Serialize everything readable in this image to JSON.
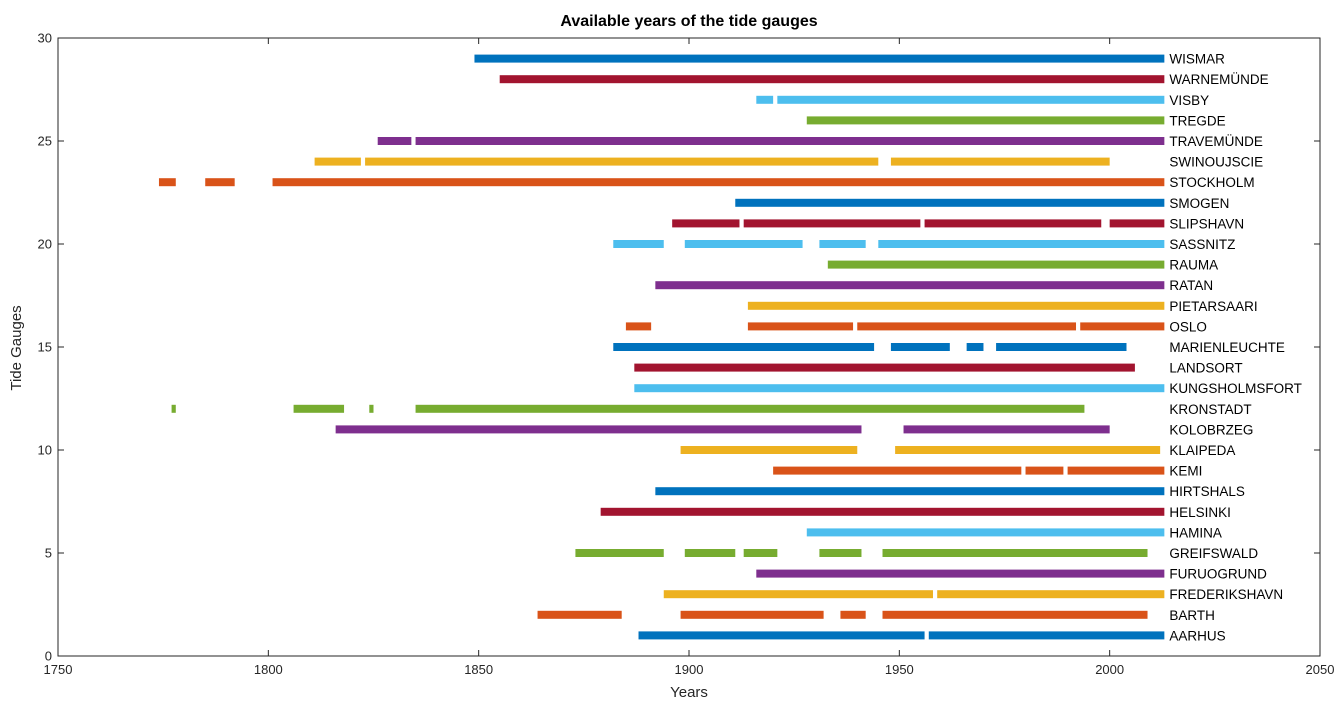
{
  "chart_data": {
    "type": "timeline",
    "title": "Available years of the tide gauges",
    "xlabel": "Years",
    "ylabel": "Tide Gauges",
    "xlim": [
      1750,
      2050
    ],
    "ylim": [
      0,
      30
    ],
    "xticks": [
      "1750",
      "1800",
      "1850",
      "1900",
      "1950",
      "2000",
      "2050"
    ],
    "yticks": [
      "0",
      "5",
      "10",
      "15",
      "20",
      "25",
      "30"
    ],
    "grid": false,
    "colors": [
      "#0072BD",
      "#D95319",
      "#EDB120",
      "#7E2F8E",
      "#77AC30",
      "#4DBEEE",
      "#A2142F"
    ],
    "series": [
      {
        "name": "AARHUS",
        "y": 1,
        "color": "#0072BD",
        "segments": [
          [
            1888,
            1956
          ],
          [
            1957,
            2013
          ]
        ]
      },
      {
        "name": "BARTH",
        "y": 2,
        "color": "#D95319",
        "segments": [
          [
            1864,
            1884
          ],
          [
            1898,
            1932
          ],
          [
            1936,
            1942
          ],
          [
            1946,
            2009
          ]
        ]
      },
      {
        "name": "FREDERIKSHAVN",
        "y": 3,
        "color": "#EDB120",
        "segments": [
          [
            1894,
            1958
          ],
          [
            1959,
            2013
          ]
        ]
      },
      {
        "name": "FURUOGRUND",
        "y": 4,
        "color": "#7E2F8E",
        "segments": [
          [
            1916,
            2013
          ]
        ]
      },
      {
        "name": "GREIFSWALD",
        "y": 5,
        "color": "#77AC30",
        "segments": [
          [
            1873,
            1894
          ],
          [
            1899,
            1911
          ],
          [
            1913,
            1921
          ],
          [
            1931,
            1941
          ],
          [
            1946,
            2009
          ]
        ]
      },
      {
        "name": "HAMINA",
        "y": 6,
        "color": "#4DBEEE",
        "segments": [
          [
            1928,
            2013
          ]
        ]
      },
      {
        "name": "HELSINKI",
        "y": 7,
        "color": "#A2142F",
        "segments": [
          [
            1879,
            2013
          ]
        ]
      },
      {
        "name": "HIRTSHALS",
        "y": 8,
        "color": "#0072BD",
        "segments": [
          [
            1892,
            2013
          ]
        ]
      },
      {
        "name": "KEMI",
        "y": 9,
        "color": "#D95319",
        "segments": [
          [
            1920,
            1979
          ],
          [
            1980,
            1989
          ],
          [
            1990,
            2013
          ]
        ]
      },
      {
        "name": "KLAIPEDA",
        "y": 10,
        "color": "#EDB120",
        "segments": [
          [
            1898,
            1940
          ],
          [
            1949,
            2012
          ]
        ]
      },
      {
        "name": "KOLOBRZEG",
        "y": 11,
        "color": "#7E2F8E",
        "segments": [
          [
            1816,
            1941
          ],
          [
            1951,
            2000
          ]
        ]
      },
      {
        "name": "KRONSTADT",
        "y": 12,
        "color": "#77AC30",
        "segments": [
          [
            1777,
            1778
          ],
          [
            1806,
            1818
          ],
          [
            1824,
            1825
          ],
          [
            1835,
            1994
          ]
        ]
      },
      {
        "name": "KUNGSHOLMSFORT",
        "y": 13,
        "color": "#4DBEEE",
        "segments": [
          [
            1887,
            2013
          ]
        ]
      },
      {
        "name": "LANDSORT",
        "y": 14,
        "color": "#A2142F",
        "segments": [
          [
            1887,
            2006
          ]
        ]
      },
      {
        "name": "MARIENLEUCHTE",
        "y": 15,
        "color": "#0072BD",
        "segments": [
          [
            1882,
            1944
          ],
          [
            1948,
            1962
          ],
          [
            1966,
            1970
          ],
          [
            1973,
            2004
          ]
        ]
      },
      {
        "name": "OSLO",
        "y": 16,
        "color": "#D95319",
        "segments": [
          [
            1885,
            1891
          ],
          [
            1914,
            1939
          ],
          [
            1940,
            1992
          ],
          [
            1993,
            2013
          ]
        ]
      },
      {
        "name": "PIETARSAARI",
        "y": 17,
        "color": "#EDB120",
        "segments": [
          [
            1914,
            2013
          ]
        ]
      },
      {
        "name": "RATAN",
        "y": 18,
        "color": "#7E2F8E",
        "segments": [
          [
            1892,
            2013
          ]
        ]
      },
      {
        "name": "RAUMA",
        "y": 19,
        "color": "#77AC30",
        "segments": [
          [
            1933,
            2013
          ]
        ]
      },
      {
        "name": "SASSNITZ",
        "y": 20,
        "color": "#4DBEEE",
        "segments": [
          [
            1882,
            1894
          ],
          [
            1899,
            1927
          ],
          [
            1931,
            1942
          ],
          [
            1945,
            2013
          ]
        ]
      },
      {
        "name": "SLIPSHAVN",
        "y": 21,
        "color": "#A2142F",
        "segments": [
          [
            1896,
            1912
          ],
          [
            1913,
            1955
          ],
          [
            1956,
            1998
          ],
          [
            2000,
            2013
          ]
        ]
      },
      {
        "name": "SMOGEN",
        "y": 22,
        "color": "#0072BD",
        "segments": [
          [
            1911,
            2013
          ]
        ]
      },
      {
        "name": "STOCKHOLM",
        "y": 23,
        "color": "#D95319",
        "segments": [
          [
            1774,
            1778
          ],
          [
            1785,
            1792
          ],
          [
            1801,
            2013
          ]
        ]
      },
      {
        "name": "SWINOUJSCIE",
        "y": 24,
        "color": "#EDB120",
        "segments": [
          [
            1811,
            1822
          ],
          [
            1823,
            1945
          ],
          [
            1948,
            2000
          ]
        ]
      },
      {
        "name": "TRAVEMÜNDE",
        "y": 25,
        "color": "#7E2F8E",
        "segments": [
          [
            1826,
            1834
          ],
          [
            1835,
            2013
          ]
        ]
      },
      {
        "name": "TREGDE",
        "y": 26,
        "color": "#77AC30",
        "segments": [
          [
            1928,
            2013
          ]
        ]
      },
      {
        "name": "VISBY",
        "y": 27,
        "color": "#4DBEEE",
        "segments": [
          [
            1916,
            1920
          ],
          [
            1921,
            2013
          ]
        ]
      },
      {
        "name": "WARNEMÜNDE",
        "y": 28,
        "color": "#A2142F",
        "segments": [
          [
            1855,
            2013
          ]
        ]
      },
      {
        "name": "WISMAR",
        "y": 29,
        "color": "#0072BD",
        "segments": [
          [
            1849,
            2013
          ]
        ]
      }
    ]
  }
}
